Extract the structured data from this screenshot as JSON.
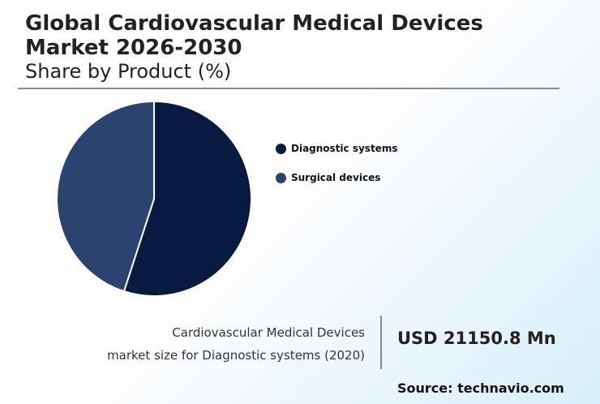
{
  "header": {
    "title": "Global Cardiovascular Medical Devices Market 2026-2030",
    "subtitle": "Share by Product (%)"
  },
  "chart_data": {
    "type": "pie",
    "title": "Share by Product (%)",
    "categories": [
      "Diagnostic systems",
      "Surgical devices"
    ],
    "values": [
      55,
      45
    ],
    "colors": [
      "#071a40",
      "#2c4370"
    ],
    "legend_position": "right"
  },
  "stat": {
    "caption_line1": "Cardiovascular Medical Devices",
    "caption_line2": "market size for Diagnostic systems (2020)",
    "value": "USD 21150.8 Mn"
  },
  "footer": {
    "source": "Source: technavio.com"
  }
}
